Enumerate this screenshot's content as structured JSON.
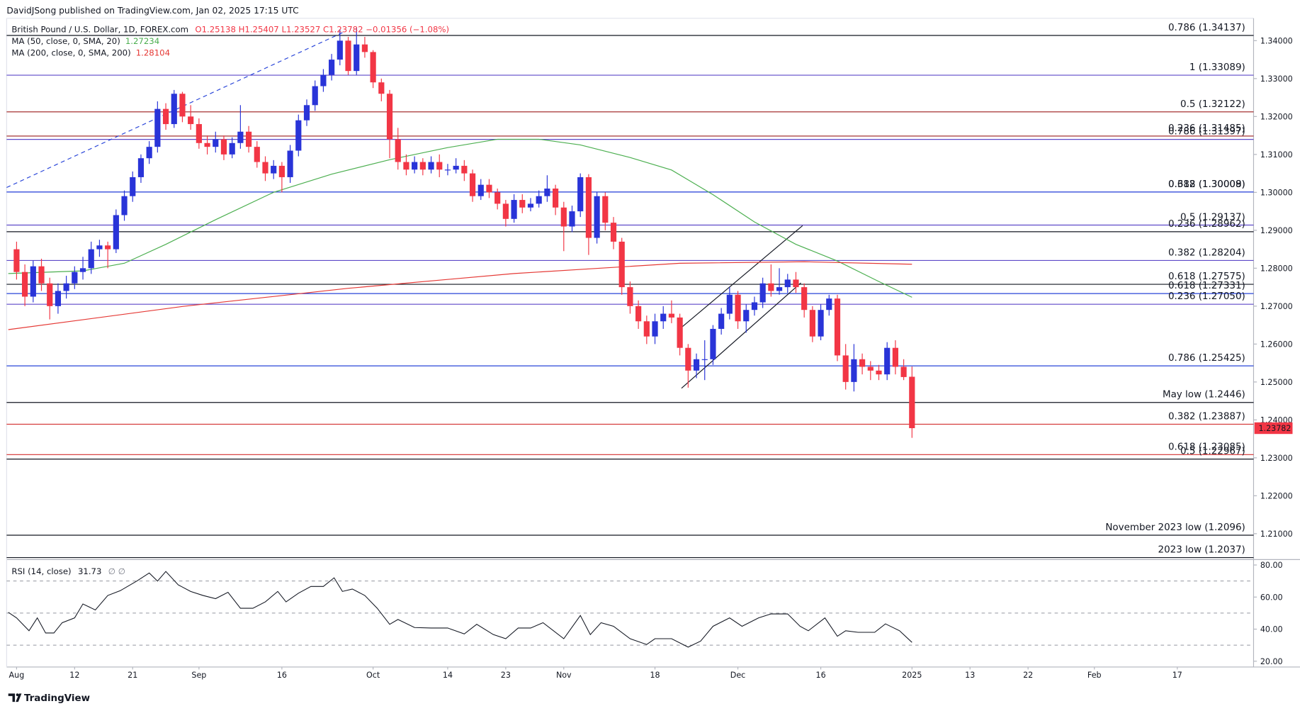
{
  "header": "DavidJSong published on TradingView.com, Jan 02, 2025 17:15 UTC",
  "footer": "TradingView",
  "chart_data": [
    {
      "type": "candlestick",
      "title": "British Pound / U.S. Dollar, 1D, FOREX.com",
      "ohlc_legend": "O1.25138 H1.25407 L1.23527 C1.23782 −0.01356 (−1.08%)",
      "up_color": "#2934d8",
      "down_color": "#f23645",
      "xlim": [
        -1.2,
        149.2
      ],
      "ylim": [
        1.2035,
        1.3459
      ],
      "xticks": [
        {
          "value": 0,
          "label": "Aug"
        },
        {
          "value": 7,
          "label": "12"
        },
        {
          "value": 14,
          "label": "21"
        },
        {
          "value": 22,
          "label": "Sep"
        },
        {
          "value": 32,
          "label": "16"
        },
        {
          "value": 43,
          "label": "Oct"
        },
        {
          "value": 52,
          "label": "14"
        },
        {
          "value": 59,
          "label": "23"
        },
        {
          "value": 66,
          "label": "Nov"
        },
        {
          "value": 77,
          "label": "18"
        },
        {
          "value": 87,
          "label": "Dec"
        },
        {
          "value": 97,
          "label": "16"
        },
        {
          "value": 108,
          "label": "2025"
        },
        {
          "value": 115,
          "label": "13"
        },
        {
          "value": 122,
          "label": "22"
        },
        {
          "value": 130,
          "label": "Feb"
        },
        {
          "value": 140,
          "label": "17"
        }
      ],
      "yticks": [
        {
          "value": 1.21,
          "label": "1.21000"
        },
        {
          "value": 1.22,
          "label": "1.22000"
        },
        {
          "value": 1.23,
          "label": "1.23000"
        },
        {
          "value": 1.24,
          "label": "1.24000"
        },
        {
          "value": 1.25,
          "label": "1.25000"
        },
        {
          "value": 1.26,
          "label": "1.26000"
        },
        {
          "value": 1.27,
          "label": "1.27000"
        },
        {
          "value": 1.28,
          "label": "1.28000"
        },
        {
          "value": 1.29,
          "label": "1.29000"
        },
        {
          "value": 1.3,
          "label": "1.30000"
        },
        {
          "value": 1.31,
          "label": "1.31000"
        },
        {
          "value": 1.32,
          "label": "1.32000"
        },
        {
          "value": 1.33,
          "label": "1.33000"
        },
        {
          "value": 1.34,
          "label": "1.34000"
        }
      ],
      "levels": [
        {
          "label": "0.786 (1.34137)",
          "value": 1.34137,
          "color": "#131722"
        },
        {
          "label": "1 (1.33089)",
          "value": 1.33089,
          "color": "#5e49c9"
        },
        {
          "label": "0.5 (1.32122)",
          "value": 1.32122,
          "color": "#9b1c1c"
        },
        {
          "label": "0.236 (1.31485)",
          "value": 1.31485,
          "color": "#9b1c1c"
        },
        {
          "label": "0.786 (1.31397)",
          "value": 1.31397,
          "color": "#5e49c9"
        },
        {
          "label": "0.618 (1.30008)",
          "value": 1.30008,
          "color": "#5e49c9"
        },
        {
          "label": "0.382 (1.30009)",
          "value": 1.30009,
          "color": "#2945d9"
        },
        {
          "label": "0.5 (1.29137)",
          "value": 1.29137,
          "color": "#5e49c9"
        },
        {
          "label": "0.236 (1.28962)",
          "value": 1.28962,
          "color": "#131722"
        },
        {
          "label": "0.382 (1.28204)",
          "value": 1.28204,
          "color": "#5e49c9"
        },
        {
          "label": "0.618 (1.27575)",
          "value": 1.27575,
          "color": "#131722"
        },
        {
          "label": "0.618 (1.27331)",
          "value": 1.27331,
          "color": "#2945d9"
        },
        {
          "label": "0.236 (1.27050)",
          "value": 1.2705,
          "color": "#5e49c9"
        },
        {
          "label": "0.786 (1.25425)",
          "value": 1.25425,
          "color": "#2945d9"
        },
        {
          "label": "May low (1.2446)",
          "value": 1.2446,
          "color": "#131722"
        },
        {
          "label": "0.382 (1.23887)",
          "value": 1.23887,
          "color": "#d32f2f"
        },
        {
          "label": "0.618 (1.23085)",
          "value": 1.23085,
          "color": "#d32f2f"
        },
        {
          "label": "0.5 (1.22967)",
          "value": 1.22967,
          "color": "#131722"
        },
        {
          "label": "November 2023 low (1.2096)",
          "value": 1.2096,
          "color": "#131722"
        },
        {
          "label": "2023 low (1.2037)",
          "value": 1.2037,
          "color": "#131722"
        }
      ],
      "series": [
        {
          "name": "MA (50, close, 0, SMA, 20)",
          "color": "#4caf50",
          "x": [
            -1,
            8,
            13,
            18,
            24,
            31,
            38,
            45,
            52,
            58,
            63,
            68,
            74,
            79,
            84,
            89,
            94,
            99,
            104,
            108
          ],
          "values": [
            1.2786,
            1.2793,
            1.2813,
            1.2863,
            1.2928,
            1.3,
            1.3048,
            1.3086,
            1.3118,
            1.314,
            1.314,
            1.3125,
            1.3092,
            1.3059,
            1.2994,
            1.2922,
            1.2863,
            1.2819,
            1.2765,
            1.27234
          ]
        },
        {
          "name": "MA (200, close, 0, SMA, 200)",
          "color": "#e53935",
          "x": [
            -1,
            20,
            40,
            60,
            80,
            95,
            108
          ],
          "values": [
            1.2638,
            1.2699,
            1.2747,
            1.2786,
            1.2813,
            1.2817,
            1.28104
          ]
        }
      ],
      "ohlc": [
        [
          1.285,
          1.287,
          1.277,
          1.279
        ],
        [
          1.279,
          1.281,
          1.27,
          1.2725
        ],
        [
          1.2725,
          1.282,
          1.271,
          1.2805
        ],
        [
          1.2805,
          1.2825,
          1.274,
          1.276
        ],
        [
          1.276,
          1.2775,
          1.2665,
          1.27
        ],
        [
          1.27,
          1.276,
          1.268,
          1.274
        ],
        [
          1.274,
          1.278,
          1.272,
          1.276
        ],
        [
          1.276,
          1.2805,
          1.2745,
          1.279
        ],
        [
          1.279,
          1.283,
          1.277,
          1.28
        ],
        [
          1.28,
          1.287,
          1.2785,
          1.285
        ],
        [
          1.285,
          1.2875,
          1.283,
          1.286
        ],
        [
          1.286,
          1.287,
          1.28,
          1.285
        ],
        [
          1.285,
          1.2955,
          1.284,
          1.294
        ],
        [
          1.294,
          1.3005,
          1.2925,
          1.299
        ],
        [
          1.299,
          1.3055,
          1.2975,
          1.304
        ],
        [
          1.304,
          1.31,
          1.3025,
          1.309
        ],
        [
          1.309,
          1.3135,
          1.3075,
          1.312
        ],
        [
          1.312,
          1.324,
          1.3105,
          1.322
        ],
        [
          1.322,
          1.3235,
          1.3165,
          1.318
        ],
        [
          1.318,
          1.327,
          1.317,
          1.326
        ],
        [
          1.326,
          1.3265,
          1.3185,
          1.32
        ],
        [
          1.32,
          1.323,
          1.3165,
          1.318
        ],
        [
          1.318,
          1.3195,
          1.3115,
          1.313
        ],
        [
          1.313,
          1.315,
          1.31,
          1.312
        ],
        [
          1.312,
          1.316,
          1.3105,
          1.314
        ],
        [
          1.314,
          1.315,
          1.3085,
          1.31
        ],
        [
          1.31,
          1.3145,
          1.309,
          1.313
        ],
        [
          1.313,
          1.323,
          1.3115,
          1.316
        ],
        [
          1.316,
          1.3175,
          1.3105,
          1.312
        ],
        [
          1.312,
          1.3135,
          1.3065,
          1.308
        ],
        [
          1.308,
          1.3095,
          1.303,
          1.305
        ],
        [
          1.305,
          1.3085,
          1.3035,
          1.307
        ],
        [
          1.307,
          1.308,
          1.3,
          1.304
        ],
        [
          1.304,
          1.3125,
          1.3025,
          1.311
        ],
        [
          1.311,
          1.3205,
          1.3095,
          1.319
        ],
        [
          1.319,
          1.3245,
          1.3175,
          1.323
        ],
        [
          1.323,
          1.3295,
          1.3215,
          1.328
        ],
        [
          1.328,
          1.3325,
          1.3265,
          1.331
        ],
        [
          1.331,
          1.3365,
          1.3295,
          1.335
        ],
        [
          1.335,
          1.343,
          1.3335,
          1.34
        ],
        [
          1.34,
          1.341,
          1.331,
          1.332
        ],
        [
          1.332,
          1.3434,
          1.331,
          1.339
        ],
        [
          1.339,
          1.341,
          1.3355,
          1.337
        ],
        [
          1.337,
          1.3375,
          1.3275,
          1.329
        ],
        [
          1.329,
          1.33,
          1.324,
          1.326
        ],
        [
          1.326,
          1.327,
          1.309,
          1.314
        ],
        [
          1.314,
          1.317,
          1.306,
          1.308
        ],
        [
          1.308,
          1.31,
          1.3045,
          1.306
        ],
        [
          1.306,
          1.3095,
          1.305,
          1.308
        ],
        [
          1.308,
          1.309,
          1.3045,
          1.306
        ],
        [
          1.306,
          1.3095,
          1.305,
          1.308
        ],
        [
          1.308,
          1.31,
          1.304,
          1.306
        ],
        [
          1.306,
          1.3075,
          1.3045,
          1.306
        ],
        [
          1.306,
          1.309,
          1.305,
          1.307
        ],
        [
          1.307,
          1.3085,
          1.303,
          1.305
        ],
        [
          1.305,
          1.306,
          1.2975,
          1.299
        ],
        [
          1.299,
          1.3035,
          1.298,
          1.302
        ],
        [
          1.302,
          1.3035,
          1.2985,
          1.3
        ],
        [
          1.3,
          1.301,
          1.2955,
          1.297
        ],
        [
          1.297,
          1.298,
          1.291,
          1.293
        ],
        [
          1.293,
          1.2995,
          1.292,
          1.298
        ],
        [
          1.298,
          1.2995,
          1.2945,
          1.296
        ],
        [
          1.296,
          1.2985,
          1.295,
          1.297
        ],
        [
          1.297,
          1.3005,
          1.296,
          1.299
        ],
        [
          1.299,
          1.3045,
          1.2975,
          1.301
        ],
        [
          1.301,
          1.302,
          1.294,
          1.296
        ],
        [
          1.296,
          1.2975,
          1.2845,
          1.291
        ],
        [
          1.291,
          1.2965,
          1.2895,
          1.295
        ],
        [
          1.295,
          1.305,
          1.2935,
          1.304
        ],
        [
          1.304,
          1.3048,
          1.2835,
          1.288
        ],
        [
          1.288,
          1.3,
          1.2865,
          1.299
        ],
        [
          1.299,
          1.3,
          1.29,
          1.292
        ],
        [
          1.292,
          1.2935,
          1.285,
          1.287
        ],
        [
          1.287,
          1.288,
          1.273,
          1.275
        ],
        [
          1.275,
          1.2765,
          1.268,
          1.27
        ],
        [
          1.27,
          1.2715,
          1.264,
          1.266
        ],
        [
          1.266,
          1.2675,
          1.26,
          1.262
        ],
        [
          1.262,
          1.268,
          1.26,
          1.266
        ],
        [
          1.266,
          1.27,
          1.264,
          1.268
        ],
        [
          1.268,
          1.2715,
          1.2655,
          1.267
        ],
        [
          1.267,
          1.268,
          1.257,
          1.259
        ],
        [
          1.259,
          1.26,
          1.2485,
          1.253
        ],
        [
          1.253,
          1.2575,
          1.251,
          1.256
        ],
        [
          1.256,
          1.261,
          1.2505,
          1.256
        ],
        [
          1.256,
          1.265,
          1.2545,
          1.264
        ],
        [
          1.264,
          1.2695,
          1.2625,
          1.268
        ],
        [
          1.268,
          1.275,
          1.2665,
          1.273
        ],
        [
          1.273,
          1.274,
          1.264,
          1.266
        ],
        [
          1.266,
          1.2705,
          1.263,
          1.269
        ],
        [
          1.269,
          1.2725,
          1.2675,
          1.271
        ],
        [
          1.271,
          1.2775,
          1.2695,
          1.276
        ],
        [
          1.276,
          1.281,
          1.2725,
          1.274
        ],
        [
          1.274,
          1.28,
          1.273,
          1.275
        ],
        [
          1.275,
          1.2785,
          1.2735,
          1.277
        ],
        [
          1.277,
          1.279,
          1.2735,
          1.275
        ],
        [
          1.275,
          1.276,
          1.267,
          1.269
        ],
        [
          1.269,
          1.27,
          1.2605,
          1.262
        ],
        [
          1.262,
          1.2705,
          1.261,
          1.269
        ],
        [
          1.269,
          1.273,
          1.2675,
          1.272
        ],
        [
          1.272,
          1.273,
          1.2555,
          1.257
        ],
        [
          1.257,
          1.26,
          1.248,
          1.25
        ],
        [
          1.25,
          1.26,
          1.2475,
          1.256
        ],
        [
          1.256,
          1.2575,
          1.252,
          1.254
        ],
        [
          1.254,
          1.2555,
          1.2505,
          1.253
        ],
        [
          1.253,
          1.2545,
          1.2505,
          1.252
        ],
        [
          1.252,
          1.2605,
          1.2505,
          1.259
        ],
        [
          1.259,
          1.261,
          1.252,
          1.254
        ],
        [
          1.254,
          1.256,
          1.2505,
          1.2513
        ],
        [
          1.25138,
          1.25407,
          1.23527,
          1.23782
        ]
      ]
    },
    {
      "type": "line",
      "status": "∅ ∅",
      "xlim": [
        -1.2,
        149.2
      ],
      "ylim": [
        16.9,
        82.6
      ],
      "yticks": [
        {
          "value": 20,
          "label": "20.00"
        },
        {
          "value": 40,
          "label": "40.00"
        },
        {
          "value": 60,
          "label": "60.00"
        },
        {
          "value": 80,
          "label": "80.00"
        }
      ],
      "bands": [
        30,
        50,
        70
      ],
      "series": [
        {
          "name": "RSI (14, close)",
          "color": "#131722",
          "x": [
            -1,
            0,
            1.5,
            2.5,
            3.5,
            4.5,
            5.5,
            7,
            8,
            9.5,
            11,
            12.5,
            14.5,
            16,
            17,
            18,
            19.5,
            21,
            22.5,
            24,
            25.5,
            27,
            28.5,
            30,
            31.5,
            32.5,
            34,
            35.5,
            37,
            38.3,
            39.3,
            40.5,
            42,
            43.5,
            45,
            46,
            48,
            50,
            52,
            54,
            55.5,
            57.5,
            59,
            60.5,
            62,
            63.5,
            66,
            68,
            69.2,
            70.5,
            72,
            74,
            76,
            77,
            79,
            81,
            82.5,
            84,
            86,
            87.5,
            89.5,
            91,
            93,
            94.5,
            95.5,
            97.5,
            99,
            100,
            101.5,
            103.5,
            104.8,
            106.5,
            108
          ],
          "values": [
            50.5,
            47,
            39,
            47,
            37.6,
            37.6,
            44,
            47,
            55.7,
            52,
            61,
            64,
            70,
            75,
            70,
            76,
            67.6,
            63.5,
            61,
            59,
            63,
            53,
            53,
            57,
            63.5,
            57,
            62.4,
            66.6,
            66.6,
            72,
            63.5,
            65,
            61,
            53,
            43,
            46,
            41,
            40.7,
            40.7,
            37,
            43,
            36.6,
            34,
            40.7,
            40.7,
            44,
            34,
            48.5,
            36.6,
            44,
            41.8,
            34,
            30.4,
            34,
            34,
            28.8,
            32.5,
            41.8,
            47,
            41.8,
            47,
            49.5,
            49.5,
            41.8,
            39,
            47,
            35.6,
            39,
            38,
            38,
            43.3,
            39,
            31.73
          ]
        }
      ]
    }
  ]
}
